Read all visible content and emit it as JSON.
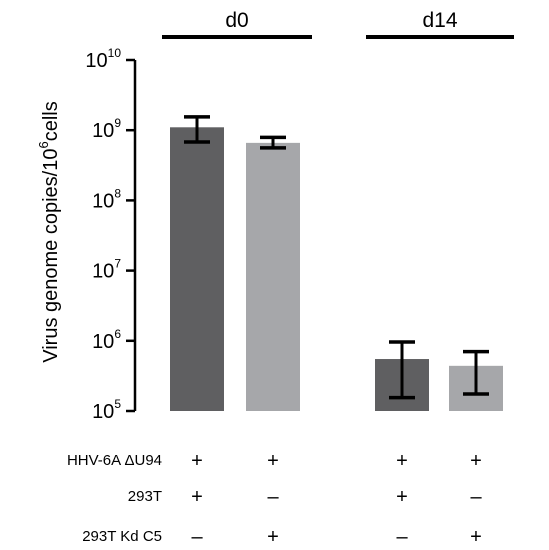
{
  "chart_data": {
    "type": "bar",
    "scale": "log",
    "ylim": [
      100000,
      10000000000
    ],
    "ylabel": {
      "prefix": "Virus genome copies/",
      "base": "10",
      "exponent": "6",
      "suffix": "cells"
    },
    "yticks": [
      {
        "value": 100000,
        "base": "10",
        "exp": "5"
      },
      {
        "value": 1000000,
        "base": "10",
        "exp": "6"
      },
      {
        "value": 10000000,
        "base": "10",
        "exp": "7"
      },
      {
        "value": 100000000,
        "base": "10",
        "exp": "8"
      },
      {
        "value": 1000000000,
        "base": "10",
        "exp": "9"
      },
      {
        "value": 10000000000,
        "base": "10",
        "exp": "10"
      }
    ],
    "groups": [
      {
        "label": "d0",
        "bars": [
          0,
          1
        ]
      },
      {
        "label": "d14",
        "bars": [
          2,
          3
        ]
      }
    ],
    "bars": [
      {
        "value": 1100000000,
        "err_low": 680000000,
        "err_high": 1550000000,
        "color": "#5f5f61"
      },
      {
        "value": 660000000,
        "err_low": 560000000,
        "err_high": 790000000,
        "color": "#a6a7aa"
      },
      {
        "value": 550000,
        "err_low": 155000,
        "err_high": 960000,
        "color": "#5f5f61"
      },
      {
        "value": 440000,
        "err_low": 175000,
        "err_high": 700000,
        "color": "#a6a7aa"
      }
    ],
    "condition_rows": [
      {
        "label": "HHV-6A ΔU94",
        "values": [
          "+",
          "+",
          "+",
          "+"
        ]
      },
      {
        "label": "293T",
        "values": [
          "+",
          "–",
          "+",
          "–"
        ]
      },
      {
        "label": "293T Kd C5",
        "values": [
          "–",
          "+",
          "–",
          "+"
        ]
      }
    ]
  }
}
